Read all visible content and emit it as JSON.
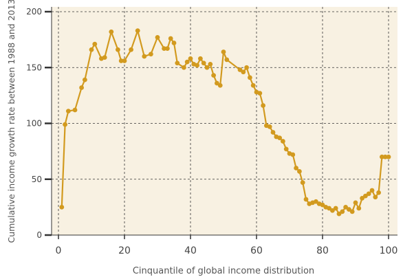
{
  "chart_data": {
    "type": "line",
    "title": "",
    "xlabel": "Cinquantile of global income distribution",
    "ylabel": "Cumulative income growth rate between 1988 and 2013",
    "xlim": [
      -2,
      102
    ],
    "ylim": [
      0,
      200
    ],
    "xticks": [
      0,
      20,
      40,
      60,
      80,
      100
    ],
    "yticks": [
      0,
      50,
      100,
      150,
      200
    ],
    "grid": "dashed",
    "legend": "none",
    "colors": {
      "plot_background": "#f8f1e2",
      "line": "#d29a1f",
      "marker": "#d29a1f",
      "axis": "#333333",
      "grid": "#333333"
    },
    "series": [
      {
        "x": [
          1,
          2,
          3,
          5,
          7,
          8,
          10,
          11,
          13,
          14,
          16,
          18,
          19,
          20,
          22,
          24,
          26,
          28,
          30,
          32,
          33,
          34,
          35,
          36,
          38,
          39,
          40,
          41,
          42,
          43,
          44,
          45,
          46,
          47,
          48,
          49,
          50,
          51,
          55,
          56,
          57,
          58,
          59,
          60,
          61,
          62,
          63,
          64,
          65,
          66,
          67,
          68,
          69,
          70,
          71,
          72,
          73,
          74,
          75,
          76,
          77,
          78,
          79,
          80,
          81,
          82,
          83,
          84,
          85,
          86,
          87,
          88,
          89,
          90,
          91,
          92,
          93,
          94,
          95,
          96,
          97,
          98,
          99,
          100
        ],
        "values": [
          25,
          99,
          111,
          112,
          132,
          139,
          166,
          171,
          158,
          159,
          182,
          166,
          156,
          156,
          166,
          183,
          160,
          162,
          177,
          167,
          167,
          176,
          172,
          154,
          150,
          155,
          158,
          153,
          152,
          158,
          154,
          150,
          153,
          143,
          136,
          134,
          164,
          157,
          148,
          146,
          150,
          141,
          134,
          128,
          127,
          116,
          98,
          97,
          92,
          88,
          87,
          84,
          77,
          73,
          72,
          60,
          57,
          47,
          32,
          28,
          29,
          30,
          28,
          27,
          25,
          24,
          22,
          24,
          19,
          21,
          25,
          23,
          21,
          29,
          24,
          33,
          35,
          37,
          40,
          34,
          38,
          70,
          70,
          70
        ]
      }
    ]
  }
}
